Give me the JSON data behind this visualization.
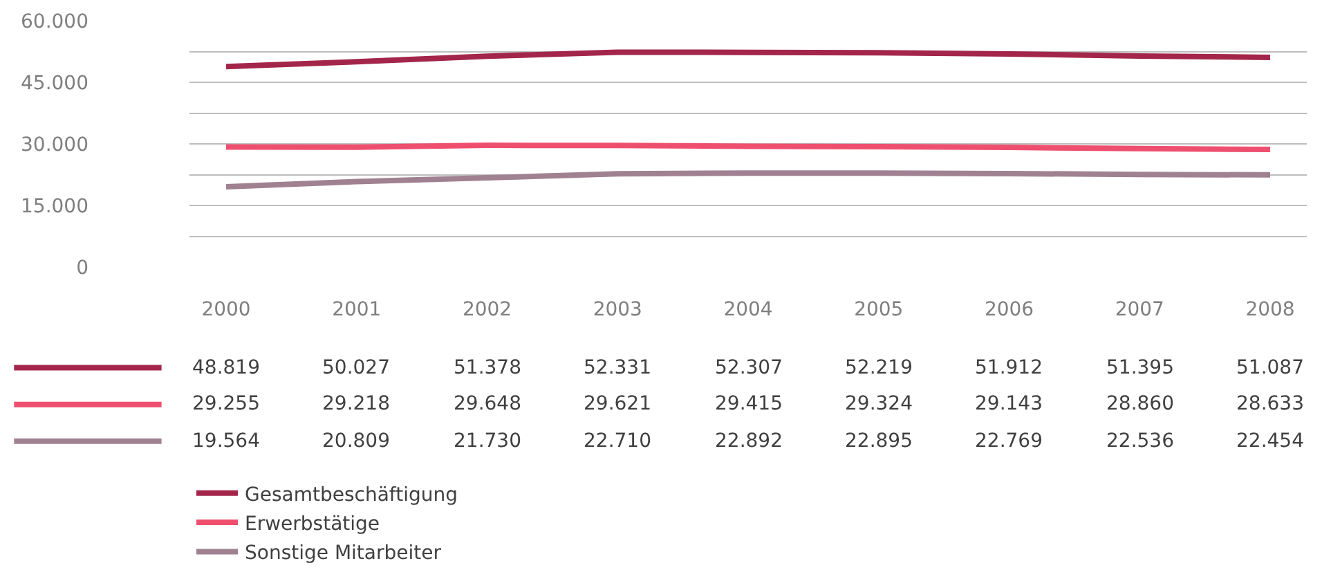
{
  "chart_data": {
    "type": "line",
    "categories": [
      "2000",
      "2001",
      "2002",
      "2003",
      "2004",
      "2005",
      "2006",
      "2007",
      "2008"
    ],
    "series": [
      {
        "name": "Gesamtbeschäftigung",
        "color": "#a3264a",
        "values": [
          48819,
          50027,
          51378,
          52331,
          52307,
          52219,
          51912,
          51395,
          51087
        ],
        "value_labels": [
          "48.819",
          "50.027",
          "51.378",
          "52.331",
          "52.307",
          "52.219",
          "51.912",
          "51.395",
          "51.087"
        ]
      },
      {
        "name": "Erwerbstätige",
        "color": "#ef4f6e",
        "values": [
          29255,
          29218,
          29648,
          29621,
          29415,
          29324,
          29143,
          28860,
          28633
        ],
        "value_labels": [
          "29.255",
          "29.218",
          "29.648",
          "29.621",
          "29.415",
          "29.324",
          "29.143",
          "28.860",
          "28.633"
        ]
      },
      {
        "name": "Sonstige Mitarbeiter",
        "color": "#a08192",
        "values": [
          19564,
          20809,
          21730,
          22710,
          22892,
          22895,
          22769,
          22536,
          22454
        ],
        "value_labels": [
          "19.564",
          "20.809",
          "21.730",
          "22.710",
          "22.892",
          "22.895",
          "22.769",
          "22.536",
          "22.454"
        ]
      }
    ],
    "ylim": [
      0,
      60000
    ],
    "yticks": [
      {
        "value": 0,
        "label": "0"
      },
      {
        "value": 7500,
        "label": null
      },
      {
        "value": 15000,
        "label": "15.000"
      },
      {
        "value": 22500,
        "label": null
      },
      {
        "value": 30000,
        "label": "30.000"
      },
      {
        "value": 37500,
        "label": null
      },
      {
        "value": 45000,
        "label": "45.000"
      },
      {
        "value": 52500,
        "label": null
      },
      {
        "value": 60000,
        "label": "60.000"
      }
    ],
    "grid": "y",
    "legend": "bottom left",
    "marker": "none",
    "line_style": "solid"
  }
}
